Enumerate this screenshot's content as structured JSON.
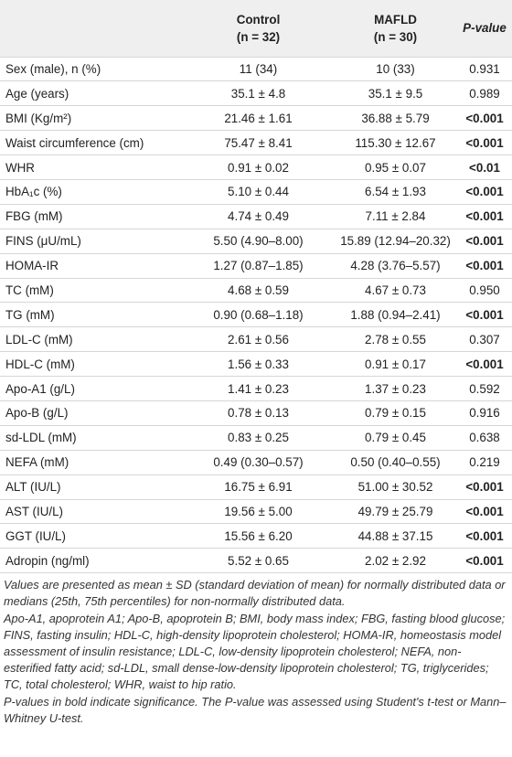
{
  "table": {
    "header": {
      "control": [
        "Control",
        "(n = 32)"
      ],
      "mafld": [
        "MAFLD",
        "(n = 30)"
      ],
      "pvalue": "P-value"
    },
    "rows": [
      [
        "Sex (male), n (%)",
        "11 (34)",
        "10 (33)",
        {
          "text": "0.931",
          "bold": false
        }
      ],
      [
        "Age (years)",
        "35.1 ± 4.8",
        "35.1 ± 9.5",
        {
          "text": "0.989",
          "bold": false
        }
      ],
      [
        "BMI (Kg/m²)",
        "21.46 ± 1.61",
        "36.88 ± 5.79",
        {
          "text": "<0.001",
          "bold": true
        }
      ],
      [
        "Waist circumference (cm)",
        "75.47 ± 8.41",
        "115.30 ± 12.67",
        {
          "text": "<0.001",
          "bold": true
        }
      ],
      [
        "WHR",
        "0.91 ± 0.02",
        "0.95 ± 0.07",
        {
          "text": "<0.01",
          "bold": true
        }
      ],
      [
        "HbA₁c (%)",
        "5.10 ± 0.44",
        "6.54 ± 1.93",
        {
          "text": "<0.001",
          "bold": true
        }
      ],
      [
        "FBG (mM)",
        "4.74 ± 0.49",
        "7.11 ± 2.84",
        {
          "text": "<0.001",
          "bold": true
        }
      ],
      [
        "FINS (μU/mL)",
        "5.50 (4.90–8.00)",
        "15.89 (12.94–20.32)",
        {
          "text": "<0.001",
          "bold": true
        }
      ],
      [
        "HOMA-IR",
        "1.27 (0.87–1.85)",
        "4.28 (3.76–5.57)",
        {
          "text": "<0.001",
          "bold": true
        }
      ],
      [
        "TC (mM)",
        "4.68 ± 0.59",
        "4.67 ± 0.73",
        {
          "text": "0.950",
          "bold": false
        }
      ],
      [
        "TG (mM)",
        "0.90 (0.68–1.18)",
        "1.88 (0.94–2.41)",
        {
          "text": "<0.001",
          "bold": true
        }
      ],
      [
        "LDL-C (mM)",
        "2.61 ± 0.56",
        "2.78 ± 0.55",
        {
          "text": "0.307",
          "bold": false
        }
      ],
      [
        "HDL-C (mM)",
        "1.56 ± 0.33",
        "0.91 ± 0.17",
        {
          "text": "<0.001",
          "bold": true
        }
      ],
      [
        "Apo-A1 (g/L)",
        "1.41 ± 0.23",
        "1.37 ± 0.23",
        {
          "text": "0.592",
          "bold": false
        }
      ],
      [
        "Apo-B (g/L)",
        "0.78 ± 0.13",
        "0.79 ± 0.15",
        {
          "text": "0.916",
          "bold": false
        }
      ],
      [
        "sd-LDL (mM)",
        "0.83 ± 0.25",
        "0.79 ± 0.45",
        {
          "text": "0.638",
          "bold": false
        }
      ],
      [
        "NEFA (mM)",
        "0.49 (0.30–0.57)",
        "0.50 (0.40–0.55)",
        {
          "text": "0.219",
          "bold": false
        }
      ],
      [
        "ALT (IU/L)",
        "16.75 ± 6.91",
        "51.00 ± 30.52",
        {
          "text": "<0.001",
          "bold": true
        }
      ],
      [
        "AST (IU/L)",
        "19.56 ± 5.00",
        "49.79 ± 25.79",
        {
          "text": "<0.001",
          "bold": true
        }
      ],
      [
        "GGT (IU/L)",
        "15.56 ± 6.20",
        "44.88 ± 37.15",
        {
          "text": "<0.001",
          "bold": true
        }
      ],
      [
        "Adropin (ng/ml)",
        "5.52 ± 0.65",
        "2.02 ± 2.92",
        {
          "text": "<0.001",
          "bold": true
        }
      ]
    ],
    "footnotes": [
      "Values are presented as mean ± SD (standard deviation of mean) for normally distributed data or medians (25th, 75th percentiles) for non-normally distributed data.",
      "Apo-A1, apoprotein A1; Apo-B, apoprotein B; BMI, body mass index; FBG, fasting blood glucose; FINS, fasting insulin; HDL-C, high-density lipoprotein cholesterol; HOMA-IR, homeostasis model assessment of insulin resistance; LDL-C, low-density lipoprotein cholesterol; NEFA, non-esterified fatty acid; sd-LDL, small dense-low-density lipoprotein cholesterol; TG, triglycerides; TC, total cholesterol; WHR, waist to hip ratio.",
      "P-values in bold indicate significance. The P-value was assessed using Student's t-test or Mann–Whitney U-test."
    ]
  }
}
